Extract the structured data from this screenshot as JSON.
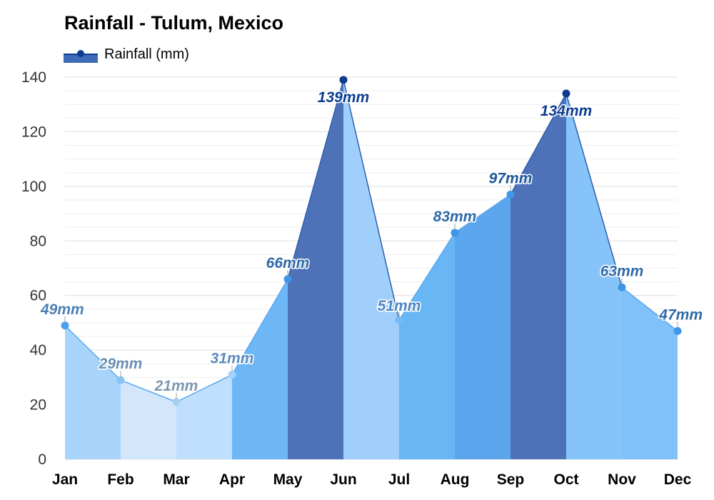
{
  "chart_data": {
    "type": "area",
    "title": "Rainfall - Tulum, Mexico",
    "xlabel": "",
    "ylabel": "",
    "categories": [
      "Jan",
      "Feb",
      "Mar",
      "Apr",
      "May",
      "Jun",
      "Jul",
      "Aug",
      "Sep",
      "Oct",
      "Nov",
      "Dec"
    ],
    "series": [
      {
        "name": "Rainfall (mm)",
        "values": [
          49,
          29,
          21,
          31,
          66,
          139,
          51,
          83,
          97,
          134,
          63,
          47
        ],
        "labels": [
          "49mm",
          "29mm",
          "21mm",
          "31mm",
          "66mm",
          "139mm",
          "51mm",
          "83mm",
          "97mm",
          "134mm",
          "63mm",
          "47mm"
        ]
      }
    ],
    "ylim": [
      0,
      140
    ],
    "yticks": [
      "0",
      "20",
      "40",
      "60",
      "80",
      "100",
      "120",
      "140"
    ],
    "grid": true,
    "legend_position": "top-left",
    "colors": {
      "legend_fill": "#3f6bb8",
      "legend_marker": "#0d3d91",
      "segment_fills": [
        "#a8d4fb",
        "#d2e7fc",
        "#bfdffc",
        "#6db7f6",
        "#4e72b8",
        "#9fcffa",
        "#69b6f5",
        "#5aa5eb",
        "#4e72b8",
        "#86c3f8",
        "#7fc1f8",
        "#7fc1f8"
      ],
      "point_colors": [
        "#4e9ff0",
        "#8ac4f6",
        "#a9d0f3",
        "#a4d2fb",
        "#3f95e8",
        "#0d3d91",
        "#78b9f3",
        "#3f95e8",
        "#3f95e8",
        "#0d3d91",
        "#3f95e8",
        "#3f95e8"
      ],
      "label_colors": [
        "#4c7fb4",
        "#6a8fb5",
        "#7c97b2",
        "#5c8bbd",
        "#2f6aa8",
        "#0d3d91",
        "#4d86c2",
        "#2f6aa8",
        "#1d5799",
        "#0d3d91",
        "#2f6aa8",
        "#2f6aa8"
      ]
    }
  }
}
